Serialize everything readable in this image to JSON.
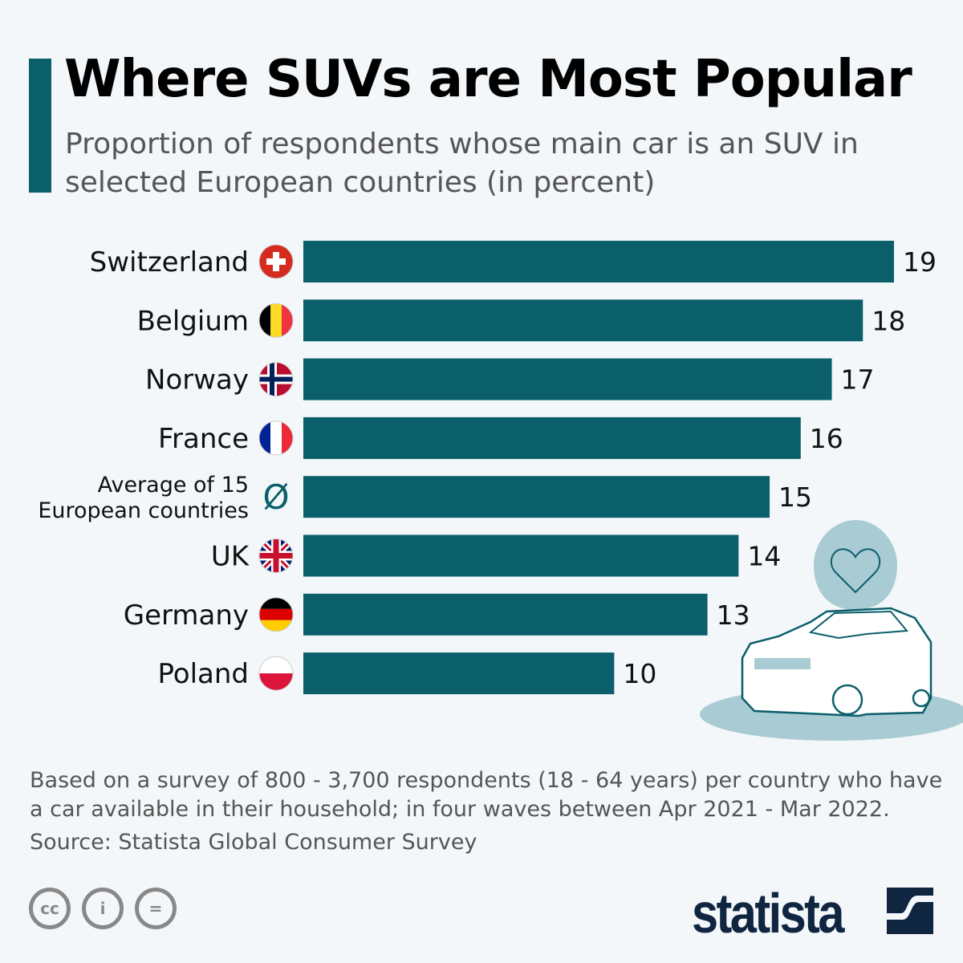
{
  "title": "Where SUVs are Most Popular",
  "subtitle": "Proportion of respondents whose main car is an SUV in selected European countries (in percent)",
  "chart_data": {
    "type": "bar",
    "orientation": "horizontal",
    "categories": [
      "Switzerland",
      "Belgium",
      "Norway",
      "France",
      "Average of 15 European countries",
      "UK",
      "Germany",
      "Poland"
    ],
    "category_lines": [
      [
        "Switzerland"
      ],
      [
        "Belgium"
      ],
      [
        "Norway"
      ],
      [
        "France"
      ],
      [
        "Average of 15",
        "European countries"
      ],
      [
        "UK"
      ],
      [
        "Germany"
      ],
      [
        "Poland"
      ]
    ],
    "values": [
      19,
      18,
      17,
      16,
      15,
      14,
      13,
      10
    ],
    "icons": [
      "flag-switzerland",
      "flag-belgium",
      "flag-norway",
      "flag-france",
      "average-symbol",
      "flag-uk",
      "flag-germany",
      "flag-poland"
    ],
    "average_symbol": "Ø",
    "xlim": [
      0,
      19
    ],
    "grid": false,
    "bar_color": "#0b5f6b",
    "unit": "percent"
  },
  "footnote": "Based on a survey of 800 - 3,700 respondents (18 - 64 years) per country who have a car available in their household; in four waves between Apr 2021 - Mar 2022.",
  "source": "Source: Statista Global Consumer Survey",
  "license_icons": {
    "cc": "cc",
    "by": "i",
    "nd": "="
  },
  "brand": "statista",
  "colors": {
    "accent": "#0b5f6b",
    "brand": "#0f2540",
    "illustration": "#a9cbd3"
  }
}
